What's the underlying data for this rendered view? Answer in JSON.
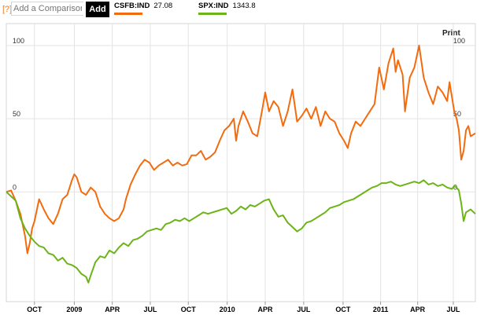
{
  "toolbar": {
    "help_label": "[?]",
    "comparison_placeholder": "Add a Comparison",
    "add_label": "Add",
    "print_label": "Print"
  },
  "legend": [
    {
      "symbol": "CSFB:IND",
      "value": "27.08",
      "color": "#f26c0f"
    },
    {
      "symbol": "SPX:IND",
      "value": "1343.8",
      "color": "#6cb418"
    }
  ],
  "chart_data": {
    "type": "line",
    "title": "",
    "xlabel": "",
    "ylabel": "",
    "ylim": [
      -75,
      115
    ],
    "y_ticks": [
      0,
      50,
      100
    ],
    "y_tick_labels": [
      "0",
      "50",
      "100"
    ],
    "x_ticks": [
      {
        "label": "OCT",
        "t": 0.06
      },
      {
        "label": "2009",
        "t": 0.145
      },
      {
        "label": "APR",
        "t": 0.226
      },
      {
        "label": "JUL",
        "t": 0.307
      },
      {
        "label": "OCT",
        "t": 0.388
      },
      {
        "label": "2010",
        "t": 0.471
      },
      {
        "label": "APR",
        "t": 0.552
      },
      {
        "label": "JUL",
        "t": 0.634
      },
      {
        "label": "OCT",
        "t": 0.718
      },
      {
        "label": "2011",
        "t": 0.798
      },
      {
        "label": "APR",
        "t": 0.877
      },
      {
        "label": "JUL",
        "t": 0.953
      }
    ],
    "grid": true,
    "legend_position": "top",
    "series": [
      {
        "name": "CSFB:IND",
        "color": "#f26c0f",
        "points": [
          [
            0.0,
            0
          ],
          [
            0.01,
            1
          ],
          [
            0.02,
            -6
          ],
          [
            0.03,
            -15
          ],
          [
            0.04,
            -30
          ],
          [
            0.045,
            -42
          ],
          [
            0.05,
            -35
          ],
          [
            0.055,
            -25
          ],
          [
            0.06,
            -20
          ],
          [
            0.07,
            -5
          ],
          [
            0.08,
            -12
          ],
          [
            0.09,
            -18
          ],
          [
            0.1,
            -22
          ],
          [
            0.11,
            -15
          ],
          [
            0.12,
            -5
          ],
          [
            0.13,
            -2
          ],
          [
            0.14,
            8
          ],
          [
            0.145,
            12
          ],
          [
            0.15,
            10
          ],
          [
            0.16,
            0
          ],
          [
            0.17,
            -2
          ],
          [
            0.18,
            3
          ],
          [
            0.19,
            0
          ],
          [
            0.2,
            -10
          ],
          [
            0.21,
            -15
          ],
          [
            0.22,
            -18
          ],
          [
            0.23,
            -20
          ],
          [
            0.24,
            -18
          ],
          [
            0.25,
            -12
          ],
          [
            0.255,
            -5
          ],
          [
            0.265,
            5
          ],
          [
            0.275,
            12
          ],
          [
            0.285,
            18
          ],
          [
            0.295,
            22
          ],
          [
            0.305,
            20
          ],
          [
            0.315,
            15
          ],
          [
            0.325,
            18
          ],
          [
            0.335,
            20
          ],
          [
            0.345,
            22
          ],
          [
            0.355,
            18
          ],
          [
            0.365,
            20
          ],
          [
            0.375,
            18
          ],
          [
            0.385,
            19
          ],
          [
            0.395,
            25
          ],
          [
            0.405,
            25
          ],
          [
            0.415,
            28
          ],
          [
            0.425,
            22
          ],
          [
            0.435,
            24
          ],
          [
            0.445,
            27
          ],
          [
            0.455,
            35
          ],
          [
            0.465,
            42
          ],
          [
            0.475,
            45
          ],
          [
            0.485,
            50
          ],
          [
            0.49,
            35
          ],
          [
            0.495,
            45
          ],
          [
            0.505,
            55
          ],
          [
            0.515,
            48
          ],
          [
            0.525,
            40
          ],
          [
            0.535,
            38
          ],
          [
            0.545,
            55
          ],
          [
            0.552,
            68
          ],
          [
            0.56,
            55
          ],
          [
            0.57,
            62
          ],
          [
            0.58,
            58
          ],
          [
            0.59,
            45
          ],
          [
            0.6,
            55
          ],
          [
            0.61,
            70
          ],
          [
            0.62,
            48
          ],
          [
            0.63,
            52
          ],
          [
            0.64,
            57
          ],
          [
            0.65,
            50
          ],
          [
            0.66,
            58
          ],
          [
            0.67,
            45
          ],
          [
            0.68,
            55
          ],
          [
            0.69,
            50
          ],
          [
            0.7,
            48
          ],
          [
            0.71,
            40
          ],
          [
            0.72,
            35
          ],
          [
            0.728,
            30
          ],
          [
            0.735,
            40
          ],
          [
            0.745,
            48
          ],
          [
            0.755,
            45
          ],
          [
            0.765,
            50
          ],
          [
            0.775,
            55
          ],
          [
            0.785,
            60
          ],
          [
            0.795,
            85
          ],
          [
            0.805,
            70
          ],
          [
            0.815,
            88
          ],
          [
            0.825,
            98
          ],
          [
            0.83,
            82
          ],
          [
            0.835,
            90
          ],
          [
            0.845,
            80
          ],
          [
            0.85,
            55
          ],
          [
            0.86,
            78
          ],
          [
            0.87,
            85
          ],
          [
            0.88,
            100
          ],
          [
            0.89,
            78
          ],
          [
            0.9,
            68
          ],
          [
            0.91,
            60
          ],
          [
            0.92,
            72
          ],
          [
            0.93,
            68
          ],
          [
            0.94,
            62
          ],
          [
            0.945,
            75
          ],
          [
            0.955,
            55
          ],
          [
            0.96,
            50
          ],
          [
            0.965,
            42
          ],
          [
            0.97,
            22
          ],
          [
            0.975,
            28
          ],
          [
            0.98,
            42
          ],
          [
            0.985,
            45
          ],
          [
            0.99,
            38
          ],
          [
            1.0,
            40
          ]
        ]
      },
      {
        "name": "SPX:IND",
        "color": "#6cb418",
        "points": [
          [
            0.0,
            0
          ],
          [
            0.01,
            -3
          ],
          [
            0.02,
            -6
          ],
          [
            0.03,
            -18
          ],
          [
            0.04,
            -25
          ],
          [
            0.05,
            -30
          ],
          [
            0.06,
            -34
          ],
          [
            0.07,
            -37
          ],
          [
            0.08,
            -38
          ],
          [
            0.09,
            -42
          ],
          [
            0.1,
            -43
          ],
          [
            0.11,
            -47
          ],
          [
            0.12,
            -45
          ],
          [
            0.13,
            -49
          ],
          [
            0.14,
            -50
          ],
          [
            0.15,
            -52
          ],
          [
            0.16,
            -56
          ],
          [
            0.17,
            -58
          ],
          [
            0.175,
            -62
          ],
          [
            0.18,
            -57
          ],
          [
            0.19,
            -48
          ],
          [
            0.2,
            -44
          ],
          [
            0.21,
            -45
          ],
          [
            0.22,
            -40
          ],
          [
            0.23,
            -42
          ],
          [
            0.24,
            -38
          ],
          [
            0.25,
            -35
          ],
          [
            0.26,
            -37
          ],
          [
            0.27,
            -33
          ],
          [
            0.28,
            -32
          ],
          [
            0.29,
            -30
          ],
          [
            0.3,
            -27
          ],
          [
            0.31,
            -26
          ],
          [
            0.32,
            -25
          ],
          [
            0.33,
            -26
          ],
          [
            0.34,
            -22
          ],
          [
            0.35,
            -21
          ],
          [
            0.36,
            -19
          ],
          [
            0.37,
            -20
          ],
          [
            0.38,
            -18
          ],
          [
            0.39,
            -20
          ],
          [
            0.4,
            -18
          ],
          [
            0.41,
            -16
          ],
          [
            0.42,
            -14
          ],
          [
            0.43,
            -15
          ],
          [
            0.44,
            -14
          ],
          [
            0.45,
            -13
          ],
          [
            0.46,
            -12
          ],
          [
            0.47,
            -11
          ],
          [
            0.48,
            -15
          ],
          [
            0.49,
            -13
          ],
          [
            0.5,
            -10
          ],
          [
            0.51,
            -12
          ],
          [
            0.52,
            -9
          ],
          [
            0.53,
            -10
          ],
          [
            0.54,
            -8
          ],
          [
            0.55,
            -6
          ],
          [
            0.56,
            -5
          ],
          [
            0.57,
            -12
          ],
          [
            0.58,
            -17
          ],
          [
            0.59,
            -16
          ],
          [
            0.6,
            -21
          ],
          [
            0.61,
            -24
          ],
          [
            0.62,
            -27
          ],
          [
            0.63,
            -25
          ],
          [
            0.64,
            -21
          ],
          [
            0.65,
            -20
          ],
          [
            0.66,
            -18
          ],
          [
            0.67,
            -16
          ],
          [
            0.68,
            -14
          ],
          [
            0.69,
            -11
          ],
          [
            0.7,
            -10
          ],
          [
            0.71,
            -9
          ],
          [
            0.72,
            -7
          ],
          [
            0.73,
            -6
          ],
          [
            0.74,
            -5
          ],
          [
            0.75,
            -3
          ],
          [
            0.76,
            -1
          ],
          [
            0.77,
            1
          ],
          [
            0.78,
            3
          ],
          [
            0.79,
            4
          ],
          [
            0.8,
            6
          ],
          [
            0.81,
            6
          ],
          [
            0.82,
            7
          ],
          [
            0.83,
            5
          ],
          [
            0.84,
            4
          ],
          [
            0.85,
            5
          ],
          [
            0.86,
            6
          ],
          [
            0.87,
            7
          ],
          [
            0.88,
            6
          ],
          [
            0.89,
            8
          ],
          [
            0.9,
            5
          ],
          [
            0.91,
            6
          ],
          [
            0.92,
            4
          ],
          [
            0.93,
            5
          ],
          [
            0.94,
            3
          ],
          [
            0.95,
            2
          ],
          [
            0.955,
            4
          ],
          [
            0.96,
            3
          ],
          [
            0.965,
            1
          ],
          [
            0.97,
            -8
          ],
          [
            0.975,
            -20
          ],
          [
            0.98,
            -14
          ],
          [
            0.99,
            -12
          ],
          [
            1.0,
            -15
          ]
        ]
      }
    ]
  }
}
